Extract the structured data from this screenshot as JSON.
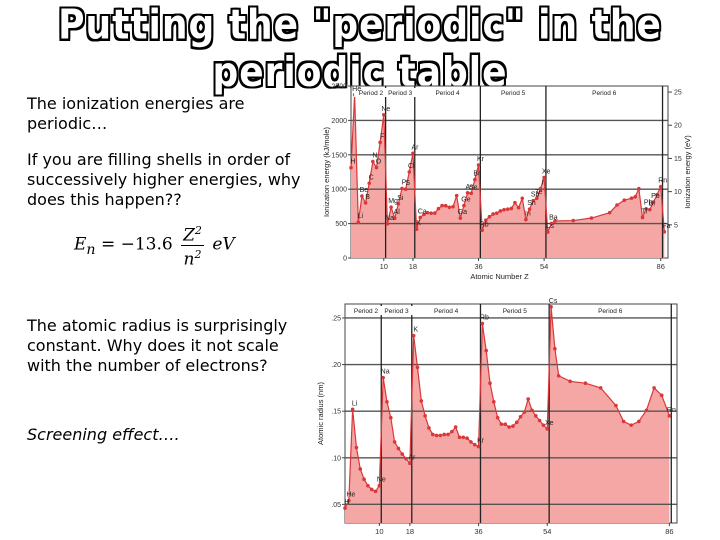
{
  "slide": {
    "title": "Putting the \"periodic\" in the periodic table",
    "text1": "The ionization energies are periodic…",
    "text2": "If you are filling shells in order of successively higher energies, why does this happen??",
    "equation": {
      "lhs": "E",
      "sub": "n",
      "coef": "= −13.6",
      "num": "Z",
      "num_sup": "2",
      "den": "n",
      "den_sup": "2",
      "unit": "eV"
    },
    "text3": "The atomic radius is surprisingly constant. Why does it not scale with the number of electrons?",
    "text4": "Screening effect…."
  },
  "colors": {
    "fill": "#f4a7a4",
    "line": "#d9383a",
    "grid": "#555555"
  },
  "chart_data": [
    {
      "type": "area",
      "ylabel": "Ionization energy (kJ/mole)",
      "y2label": "Ionization energy (eV)",
      "xlabel": "Atomic Number Z",
      "xticks": [
        10,
        18,
        36,
        54,
        86
      ],
      "yticks": [
        0,
        500,
        1000,
        1500,
        2000,
        2500
      ],
      "y2ticks": [
        5,
        10,
        15,
        20,
        25
      ],
      "ylim": [
        0,
        2500
      ],
      "xlim": [
        1,
        88
      ],
      "periods": [
        "Period 2",
        "Period 3",
        "Period 4",
        "Period 5",
        "Period 6"
      ],
      "period_bounds": [
        2,
        10,
        18,
        36,
        54,
        86
      ],
      "x": [
        1,
        2,
        3,
        4,
        5,
        6,
        7,
        8,
        9,
        10,
        11,
        12,
        13,
        14,
        15,
        16,
        17,
        18,
        19,
        20,
        21,
        22,
        23,
        24,
        25,
        26,
        27,
        28,
        29,
        30,
        31,
        32,
        33,
        34,
        35,
        36,
        37,
        38,
        39,
        40,
        41,
        42,
        43,
        44,
        45,
        46,
        47,
        48,
        49,
        50,
        51,
        52,
        53,
        54,
        55,
        56,
        57,
        62,
        67,
        72,
        74,
        76,
        78,
        79,
        80,
        81,
        82,
        83,
        84,
        85,
        86,
        87
      ],
      "values": [
        1312,
        2372,
        520,
        900,
        801,
        1086,
        1402,
        1314,
        1681,
        2081,
        496,
        738,
        578,
        787,
        1012,
        1000,
        1251,
        1521,
        419,
        590,
        633,
        659,
        651,
        653,
        717,
        762,
        760,
        737,
        746,
        906,
        579,
        762,
        947,
        941,
        1140,
        1351,
        403,
        550,
        600,
        640,
        652,
        684,
        702,
        710,
        720,
        804,
        731,
        868,
        558,
        709,
        834,
        869,
        1008,
        1170,
        376,
        503,
        538,
        544,
        581,
        659,
        770,
        840,
        870,
        890,
        1007,
        589,
        716,
        703,
        812,
        920,
        1037,
        380
      ],
      "labels": [
        {
          "x": 1,
          "y": 1312,
          "text": "H"
        },
        {
          "x": 2,
          "y": 2372,
          "text": "He"
        },
        {
          "x": 3,
          "y": 520,
          "text": "Li"
        },
        {
          "x": 4,
          "y": 900,
          "text": "Be"
        },
        {
          "x": 5,
          "y": 801,
          "text": "B"
        },
        {
          "x": 6,
          "y": 1086,
          "text": "C"
        },
        {
          "x": 7,
          "y": 1402,
          "text": "N"
        },
        {
          "x": 8,
          "y": 1314,
          "text": "O"
        },
        {
          "x": 9,
          "y": 1681,
          "text": "F"
        },
        {
          "x": 10,
          "y": 2081,
          "text": "Ne"
        },
        {
          "x": 11,
          "y": 496,
          "text": "Na"
        },
        {
          "x": 12,
          "y": 738,
          "text": "Mg"
        },
        {
          "x": 13,
          "y": 578,
          "text": "Al"
        },
        {
          "x": 14,
          "y": 787,
          "text": "Si"
        },
        {
          "x": 15,
          "y": 1012,
          "text": "P"
        },
        {
          "x": 16,
          "y": 1000,
          "text": "S"
        },
        {
          "x": 17,
          "y": 1251,
          "text": "Cl"
        },
        {
          "x": 18,
          "y": 1521,
          "text": "Ar"
        },
        {
          "x": 19,
          "y": 419,
          "text": "K"
        },
        {
          "x": 20,
          "y": 590,
          "text": "Ca"
        },
        {
          "x": 31,
          "y": 579,
          "text": "Ga"
        },
        {
          "x": 32,
          "y": 762,
          "text": "Ge"
        },
        {
          "x": 33,
          "y": 947,
          "text": "As"
        },
        {
          "x": 34,
          "y": 941,
          "text": "Se"
        },
        {
          "x": 35,
          "y": 1140,
          "text": "Br"
        },
        {
          "x": 36,
          "y": 1351,
          "text": "Kr"
        },
        {
          "x": 37,
          "y": 403,
          "text": "Rb"
        },
        {
          "x": 49,
          "y": 558,
          "text": "In"
        },
        {
          "x": 50,
          "y": 709,
          "text": "Sn"
        },
        {
          "x": 51,
          "y": 834,
          "text": "Sb"
        },
        {
          "x": 52,
          "y": 869,
          "text": "Te"
        },
        {
          "x": 53,
          "y": 1008,
          "text": "I"
        },
        {
          "x": 54,
          "y": 1170,
          "text": "Xe"
        },
        {
          "x": 55,
          "y": 376,
          "text": "Cs"
        },
        {
          "x": 56,
          "y": 503,
          "text": "Ba"
        },
        {
          "x": 81,
          "y": 589,
          "text": "Tl"
        },
        {
          "x": 82,
          "y": 716,
          "text": "Pb"
        },
        {
          "x": 83,
          "y": 703,
          "text": "Bi"
        },
        {
          "x": 84,
          "y": 812,
          "text": "Po"
        },
        {
          "x": 86,
          "y": 1037,
          "text": "Rn"
        },
        {
          "x": 87,
          "y": 380,
          "text": "Fa"
        }
      ]
    },
    {
      "type": "area",
      "ylabel": "Atomic radius (nm)",
      "xlabel": "Atomic Number Z",
      "xticks": [
        10,
        18,
        36,
        54,
        86
      ],
      "yticks": [
        0.05,
        0.1,
        0.15,
        0.2,
        0.25
      ],
      "ylim": [
        0.03,
        0.265
      ],
      "xlim": [
        1,
        88
      ],
      "periods": [
        "Period 2",
        "Period 3",
        "Period 4",
        "Period 5",
        "Period 6"
      ],
      "period_bounds": [
        2,
        10,
        18,
        36,
        54,
        86
      ],
      "x": [
        1,
        2,
        3,
        4,
        5,
        6,
        7,
        8,
        9,
        10,
        11,
        12,
        13,
        14,
        15,
        16,
        17,
        18,
        19,
        20,
        21,
        22,
        23,
        24,
        25,
        26,
        27,
        28,
        29,
        30,
        31,
        32,
        33,
        34,
        35,
        36,
        37,
        38,
        39,
        40,
        41,
        42,
        43,
        44,
        45,
        46,
        47,
        48,
        49,
        50,
        51,
        52,
        53,
        54,
        55,
        56,
        57,
        60,
        64,
        68,
        72,
        74,
        76,
        78,
        80,
        82,
        84,
        86
      ],
      "values": [
        0.046,
        0.054,
        0.152,
        0.111,
        0.088,
        0.077,
        0.07,
        0.066,
        0.064,
        0.07,
        0.186,
        0.16,
        0.143,
        0.117,
        0.11,
        0.104,
        0.099,
        0.094,
        0.231,
        0.197,
        0.161,
        0.145,
        0.132,
        0.125,
        0.124,
        0.124,
        0.125,
        0.125,
        0.128,
        0.133,
        0.122,
        0.122,
        0.121,
        0.117,
        0.114,
        0.112,
        0.244,
        0.215,
        0.18,
        0.16,
        0.143,
        0.136,
        0.136,
        0.133,
        0.134,
        0.138,
        0.144,
        0.149,
        0.163,
        0.151,
        0.145,
        0.14,
        0.135,
        0.131,
        0.262,
        0.217,
        0.188,
        0.182,
        0.18,
        0.175,
        0.156,
        0.139,
        0.135,
        0.139,
        0.151,
        0.175,
        0.167,
        0.145
      ],
      "labels": [
        {
          "x": 1,
          "y": 0.046,
          "text": "H"
        },
        {
          "x": 2,
          "y": 0.054,
          "text": "He"
        },
        {
          "x": 3,
          "y": 0.152,
          "text": "Li"
        },
        {
          "x": 10,
          "y": 0.07,
          "text": "Ne"
        },
        {
          "x": 11,
          "y": 0.186,
          "text": "Na"
        },
        {
          "x": 18,
          "y": 0.094,
          "text": "Ar"
        },
        {
          "x": 19,
          "y": 0.231,
          "text": "K"
        },
        {
          "x": 36,
          "y": 0.112,
          "text": "Kr"
        },
        {
          "x": 37,
          "y": 0.244,
          "text": "Rb"
        },
        {
          "x": 54,
          "y": 0.131,
          "text": "Xe"
        },
        {
          "x": 55,
          "y": 0.262,
          "text": "Cs"
        },
        {
          "x": 86,
          "y": 0.145,
          "text": "Rn"
        }
      ]
    }
  ]
}
